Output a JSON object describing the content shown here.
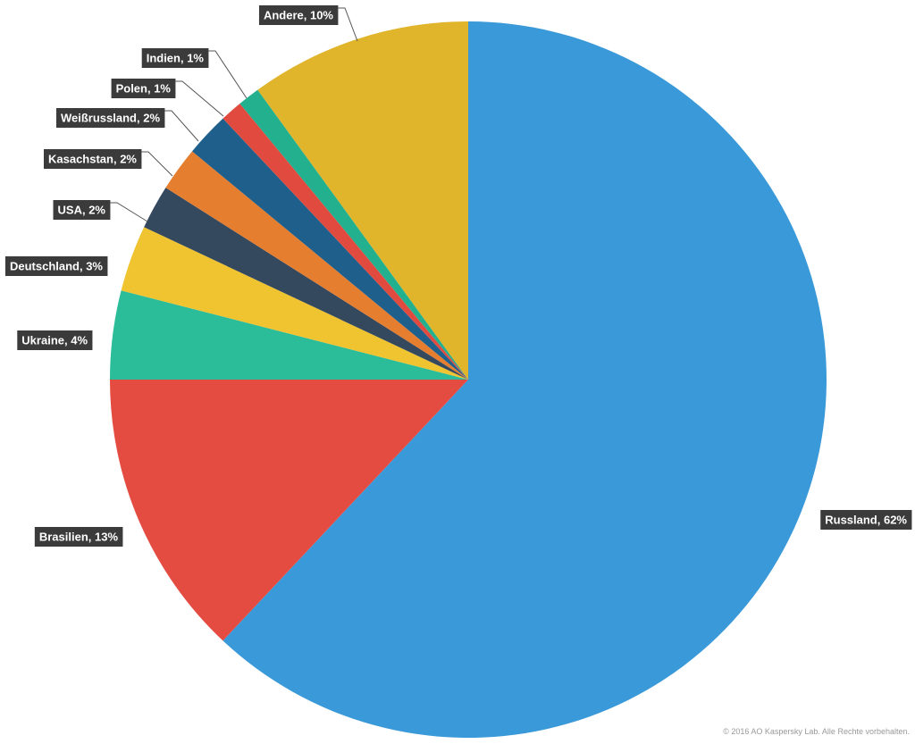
{
  "chart_data": {
    "type": "pie",
    "values": [
      62,
      13,
      4,
      3,
      2,
      2,
      2,
      1,
      1,
      10
    ],
    "value_labels": [
      "Russland, 62%",
      "Brasilien, 13%",
      "Ukraine, 4%",
      "Deutschland, 3%",
      "USA, 2%",
      "Kasachstan, 2%",
      "Weißrussland, 2%",
      "Polen, 1%",
      "Indien, 1%",
      "Andere, 10%"
    ],
    "colors": [
      "#3a99d8",
      "#e44c41",
      "#2bbc99",
      "#f0c330",
      "#35495e",
      "#e67e30",
      "#1f5f8b",
      "#e04a3f",
      "#23b08f",
      "#e0b42b"
    ],
    "note": "© 2016 AO Kaspersky Lab. Alle Rechte vorbehalten."
  }
}
